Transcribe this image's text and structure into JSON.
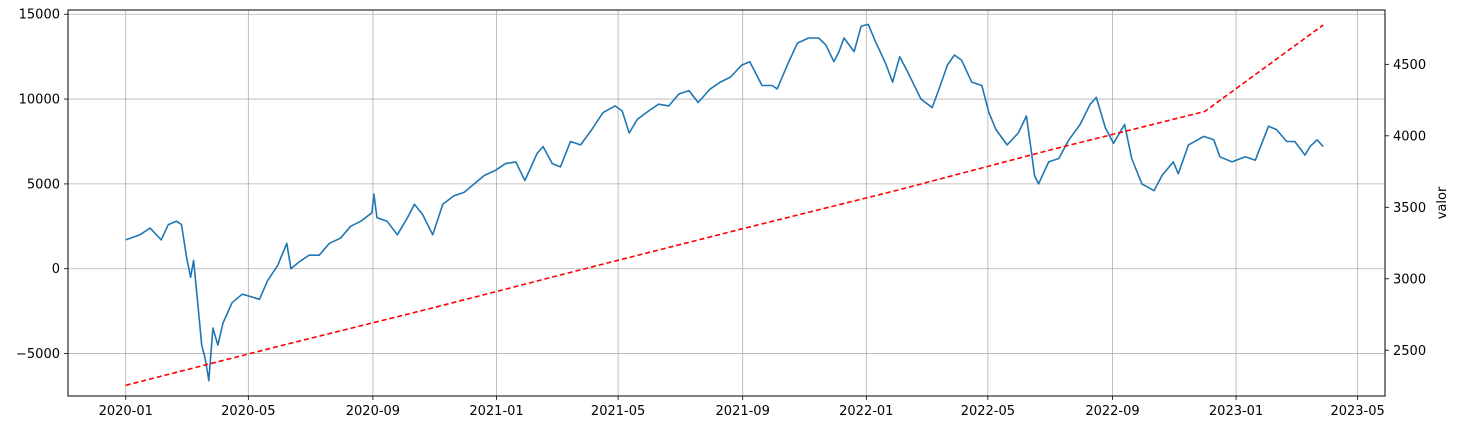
{
  "chart_data": {
    "type": "line",
    "title": "",
    "xlabel": "",
    "y_left_label": "",
    "y_right_label": "valor",
    "grid": true,
    "x_ticks": [
      "2020-01",
      "2020-05",
      "2020-09",
      "2021-01",
      "2021-05",
      "2021-09",
      "2022-01",
      "2022-05",
      "2022-09",
      "2023-01",
      "2023-05"
    ],
    "xlim": [
      "2019-11-05",
      "2023-05-28"
    ],
    "y_left_ticks": [
      -5000,
      0,
      5000,
      10000,
      15000
    ],
    "y_left_lim": [
      -7500,
      15250
    ],
    "y_right_ticks": [
      2500,
      3000,
      3500,
      4000,
      4500
    ],
    "y_right_lim": [
      2180,
      4880
    ],
    "series": [
      {
        "axis": "left",
        "color": "#1f77b4",
        "style": "solid",
        "points": [
          [
            "2020-01-01",
            1700
          ],
          [
            "2020-01-15",
            2000
          ],
          [
            "2020-01-25",
            2400
          ],
          [
            "2020-02-05",
            1700
          ],
          [
            "2020-02-12",
            2600
          ],
          [
            "2020-02-20",
            2800
          ],
          [
            "2020-02-25",
            2600
          ],
          [
            "2020-03-01",
            700
          ],
          [
            "2020-03-05",
            -500
          ],
          [
            "2020-03-08",
            500
          ],
          [
            "2020-03-12",
            -2000
          ],
          [
            "2020-03-16",
            -4500
          ],
          [
            "2020-03-19",
            -5200
          ],
          [
            "2020-03-22",
            -6200
          ],
          [
            "2020-03-23",
            -6600
          ],
          [
            "2020-03-27",
            -3500
          ],
          [
            "2020-04-01",
            -4500
          ],
          [
            "2020-04-06",
            -3200
          ],
          [
            "2020-04-15",
            -2000
          ],
          [
            "2020-04-25",
            -1500
          ],
          [
            "2020-05-01",
            -1600
          ],
          [
            "2020-05-12",
            -1800
          ],
          [
            "2020-05-20",
            -700
          ],
          [
            "2020-05-30",
            200
          ],
          [
            "2020-06-08",
            1500
          ],
          [
            "2020-06-12",
            0
          ],
          [
            "2020-06-20",
            400
          ],
          [
            "2020-06-30",
            800
          ],
          [
            "2020-07-10",
            800
          ],
          [
            "2020-07-20",
            1500
          ],
          [
            "2020-07-31",
            1800
          ],
          [
            "2020-08-10",
            2500
          ],
          [
            "2020-08-20",
            2800
          ],
          [
            "2020-08-31",
            3300
          ],
          [
            "2020-09-02",
            4400
          ],
          [
            "2020-09-05",
            3000
          ],
          [
            "2020-09-15",
            2800
          ],
          [
            "2020-09-25",
            2000
          ],
          [
            "2020-10-05",
            3000
          ],
          [
            "2020-10-12",
            3800
          ],
          [
            "2020-10-20",
            3200
          ],
          [
            "2020-10-30",
            2000
          ],
          [
            "2020-11-09",
            3800
          ],
          [
            "2020-11-20",
            4300
          ],
          [
            "2020-11-30",
            4500
          ],
          [
            "2020-12-10",
            5000
          ],
          [
            "2020-12-20",
            5500
          ],
          [
            "2020-12-31",
            5800
          ],
          [
            "2021-01-10",
            6200
          ],
          [
            "2021-01-20",
            6300
          ],
          [
            "2021-01-29",
            5200
          ],
          [
            "2021-02-10",
            6800
          ],
          [
            "2021-02-16",
            7200
          ],
          [
            "2021-02-25",
            6200
          ],
          [
            "2021-03-05",
            6000
          ],
          [
            "2021-03-15",
            7500
          ],
          [
            "2021-03-25",
            7300
          ],
          [
            "2021-04-05",
            8200
          ],
          [
            "2021-04-16",
            9200
          ],
          [
            "2021-04-28",
            9600
          ],
          [
            "2021-05-05",
            9300
          ],
          [
            "2021-05-12",
            8000
          ],
          [
            "2021-05-20",
            8800
          ],
          [
            "2021-05-31",
            9300
          ],
          [
            "2021-06-10",
            9700
          ],
          [
            "2021-06-20",
            9600
          ],
          [
            "2021-06-30",
            10300
          ],
          [
            "2021-07-10",
            10500
          ],
          [
            "2021-07-19",
            9800
          ],
          [
            "2021-07-31",
            10600
          ],
          [
            "2021-08-10",
            11000
          ],
          [
            "2021-08-20",
            11300
          ],
          [
            "2021-08-31",
            12000
          ],
          [
            "2021-09-08",
            12200
          ],
          [
            "2021-09-20",
            10800
          ],
          [
            "2021-09-30",
            10800
          ],
          [
            "2021-10-05",
            10600
          ],
          [
            "2021-10-15",
            12000
          ],
          [
            "2021-10-25",
            13300
          ],
          [
            "2021-11-05",
            13600
          ],
          [
            "2021-11-15",
            13600
          ],
          [
            "2021-11-22",
            13200
          ],
          [
            "2021-11-30",
            12200
          ],
          [
            "2021-12-05",
            12800
          ],
          [
            "2021-12-10",
            13600
          ],
          [
            "2021-12-20",
            12800
          ],
          [
            "2021-12-27",
            14300
          ],
          [
            "2022-01-03",
            14400
          ],
          [
            "2022-01-10",
            13400
          ],
          [
            "2022-01-20",
            12100
          ],
          [
            "2022-01-27",
            11000
          ],
          [
            "2022-02-03",
            12500
          ],
          [
            "2022-02-10",
            11700
          ],
          [
            "2022-02-24",
            10000
          ],
          [
            "2022-03-07",
            9500
          ],
          [
            "2022-03-15",
            10800
          ],
          [
            "2022-03-22",
            12000
          ],
          [
            "2022-03-29",
            12600
          ],
          [
            "2022-04-05",
            12300
          ],
          [
            "2022-04-15",
            11000
          ],
          [
            "2022-04-25",
            10800
          ],
          [
            "2022-05-02",
            9200
          ],
          [
            "2022-05-09",
            8200
          ],
          [
            "2022-05-20",
            7300
          ],
          [
            "2022-05-31",
            8000
          ],
          [
            "2022-06-08",
            9000
          ],
          [
            "2022-06-13",
            6900
          ],
          [
            "2022-06-16",
            5500
          ],
          [
            "2022-06-20",
            5000
          ],
          [
            "2022-06-30",
            6300
          ],
          [
            "2022-07-10",
            6500
          ],
          [
            "2022-07-20",
            7600
          ],
          [
            "2022-07-31",
            8500
          ],
          [
            "2022-08-10",
            9700
          ],
          [
            "2022-08-16",
            10100
          ],
          [
            "2022-08-25",
            8300
          ],
          [
            "2022-09-02",
            7400
          ],
          [
            "2022-09-13",
            8500
          ],
          [
            "2022-09-20",
            6500
          ],
          [
            "2022-09-30",
            5000
          ],
          [
            "2022-10-12",
            4600
          ],
          [
            "2022-10-20",
            5500
          ],
          [
            "2022-10-31",
            6300
          ],
          [
            "2022-11-05",
            5600
          ],
          [
            "2022-11-15",
            7300
          ],
          [
            "2022-11-30",
            7800
          ],
          [
            "2022-12-10",
            7600
          ],
          [
            "2022-12-16",
            6600
          ],
          [
            "2022-12-28",
            6300
          ],
          [
            "2023-01-10",
            6600
          ],
          [
            "2023-01-20",
            6400
          ],
          [
            "2023-02-02",
            8400
          ],
          [
            "2023-02-10",
            8200
          ],
          [
            "2023-02-20",
            7500
          ],
          [
            "2023-02-28",
            7500
          ],
          [
            "2023-03-10",
            6700
          ],
          [
            "2023-03-15",
            7200
          ],
          [
            "2023-03-22",
            7600
          ],
          [
            "2023-03-28",
            7200
          ]
        ]
      },
      {
        "axis": "right",
        "color": "#ff0000",
        "style": "dashed",
        "points": [
          [
            "2020-01-01",
            2255
          ],
          [
            "2020-06-01",
            2530
          ],
          [
            "2020-11-01",
            2800
          ],
          [
            "2021-04-01",
            3075
          ],
          [
            "2021-09-01",
            3350
          ],
          [
            "2022-02-01",
            3620
          ],
          [
            "2022-07-01",
            3900
          ],
          [
            "2022-12-01",
            4170
          ],
          [
            "2023-03-28",
            4775
          ]
        ]
      }
    ]
  }
}
